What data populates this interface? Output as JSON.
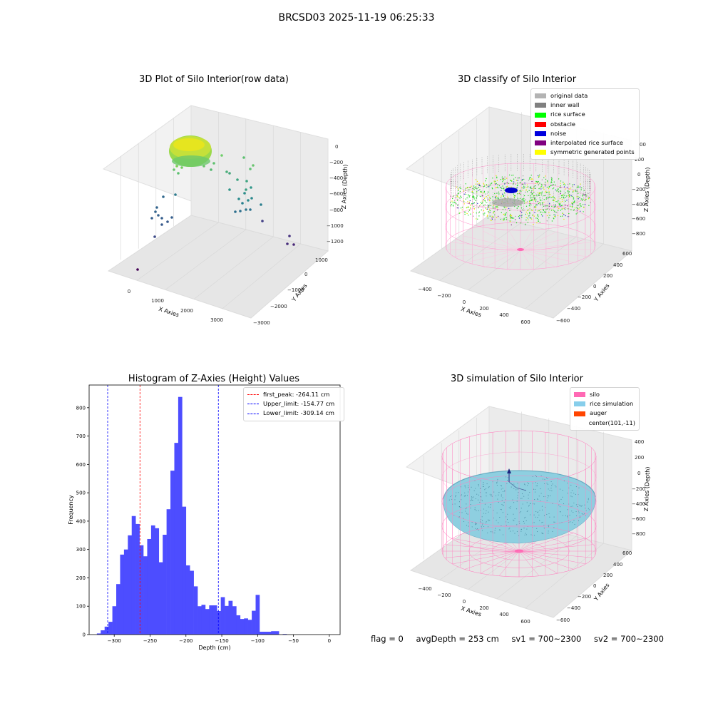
{
  "suptitle": "BRCSD03 2025-11-19 06:25:33",
  "panel1": {
    "title": "3D Plot of Silo Interior(row data)",
    "xlabel": "X Axies",
    "ylabel": "Y Axies",
    "zlabel": "Z Axies (Depth)",
    "x_ticks": [
      "0",
      "1000",
      "2000",
      "3000"
    ],
    "y_ticks": [
      "1000",
      "0",
      "−1000",
      "−2000",
      "−3000"
    ],
    "z_ticks": [
      "0",
      "−200",
      "−400",
      "−600",
      "−800",
      "−1000",
      "−1200"
    ]
  },
  "panel2": {
    "title": "3D classify of Silo Interior",
    "xlabel": "X Axies",
    "ylabel": "Y Axies",
    "zlabel": "Z Axies (Depth)",
    "x_ticks": [
      "−400",
      "−200",
      "0",
      "200",
      "400",
      "600"
    ],
    "y_ticks": [
      "600",
      "400",
      "200",
      "0",
      "−200",
      "−400",
      "−600"
    ],
    "z_ticks": [
      "200",
      "0",
      "−200",
      "−400",
      "−600",
      "−800"
    ],
    "z_top_partial": "00",
    "legend": [
      {
        "label": "original data",
        "color": "#b3b3b3"
      },
      {
        "label": "inner wall",
        "color": "#808080"
      },
      {
        "label": "rice surface",
        "color": "#00ff00"
      },
      {
        "label": "obstacle",
        "color": "#ff0000"
      },
      {
        "label": "noise",
        "color": "#0000dd"
      },
      {
        "label": "interpolated rice surface",
        "color": "#800080"
      },
      {
        "label": "symmetric generated points",
        "color": "#ffff00"
      }
    ]
  },
  "panel4": {
    "title": "3D simulation of Silo Interior",
    "xlabel": "X Axies",
    "ylabel": "Y Axies",
    "zlabel": "Z Axies (Depth)",
    "x_ticks": [
      "−400",
      "−200",
      "0",
      "200",
      "400",
      "600"
    ],
    "y_ticks": [
      "600",
      "400",
      "200",
      "0",
      "−200",
      "−400",
      "−600"
    ],
    "z_ticks": [
      "400",
      "200",
      "0",
      "−200",
      "−400",
      "−600",
      "−800"
    ],
    "legend": [
      {
        "label": "silo",
        "color": "#ff69b4"
      },
      {
        "label": "rice simulation",
        "color": "#87ceeb"
      },
      {
        "label": "auger",
        "color": "#ff4500"
      },
      {
        "label": "center(101,-11)",
        "color": "none"
      }
    ]
  },
  "status": {
    "flag": "flag = 0",
    "avg_depth": "avgDepth = 253 cm",
    "sv1": "sv1 = 700~2300",
    "sv2": "sv2 = 700~2300"
  },
  "chart_data": [
    {
      "type": "scatter",
      "title": "3D Plot of Silo Interior(row data)",
      "xlabel": "X Axies",
      "ylabel": "Y Axies",
      "zlabel": "Z Axies (Depth)",
      "xlim": [
        -400,
        3600
      ],
      "ylim": [
        -3200,
        1400
      ],
      "zlim": [
        -1300,
        100
      ]
    },
    {
      "type": "scatter",
      "title": "3D classify of Silo Interior",
      "xlabel": "X Axies",
      "ylabel": "Y Axies",
      "zlabel": "Z Axies (Depth)",
      "xlim": [
        -500,
        700
      ],
      "ylim": [
        -650,
        650
      ],
      "zlim": [
        -900,
        300
      ],
      "series": [
        {
          "name": "original data"
        },
        {
          "name": "inner wall"
        },
        {
          "name": "rice surface"
        },
        {
          "name": "obstacle"
        },
        {
          "name": "noise"
        },
        {
          "name": "interpolated rice surface"
        },
        {
          "name": "symmetric generated points"
        }
      ]
    },
    {
      "type": "bar",
      "title": "Histogram of Z-Axies (Height) Values",
      "xlabel": "Depth (cm)",
      "ylabel": "Frequency",
      "xlim": [
        -335,
        15
      ],
      "ylim": [
        0,
        880
      ],
      "x_ticks": [
        -300,
        -250,
        -200,
        -150,
        -100,
        -50,
        0
      ],
      "y_ticks": [
        0,
        100,
        200,
        300,
        400,
        500,
        600,
        700,
        800
      ],
      "bin_start": -324.2,
      "bin_width": 5.4,
      "values": [
        4,
        15,
        28,
        45,
        100,
        178,
        282,
        300,
        350,
        418,
        390,
        315,
        276,
        337,
        385,
        375,
        255,
        352,
        442,
        578,
        676,
        838,
        451,
        244,
        225,
        170,
        100,
        105,
        90,
        103,
        103,
        83,
        132,
        101,
        119,
        100,
        68,
        55,
        57,
        52,
        84,
        140,
        10,
        10,
        10,
        12,
        12,
        0,
        2
      ],
      "vlines": [
        {
          "label": "first_peak: -264.11 cm",
          "x": -264.11,
          "color": "#ff0000"
        },
        {
          "label": "Upper_limit: -154.77 cm",
          "x": -154.77,
          "color": "#0000ff"
        },
        {
          "label": "Lower_limit: -309.14 cm",
          "x": -309.14,
          "color": "#0000ff"
        }
      ]
    },
    {
      "type": "scatter",
      "title": "3D simulation of Silo Interior",
      "xlabel": "X Axies",
      "ylabel": "Y Axies",
      "zlabel": "Z Axies (Depth)",
      "xlim": [
        -500,
        700
      ],
      "ylim": [
        -650,
        650
      ],
      "zlim": [
        -900,
        450
      ],
      "series": [
        {
          "name": "silo"
        },
        {
          "name": "rice simulation"
        },
        {
          "name": "auger"
        },
        {
          "name": "center(101,-11)"
        }
      ]
    }
  ]
}
